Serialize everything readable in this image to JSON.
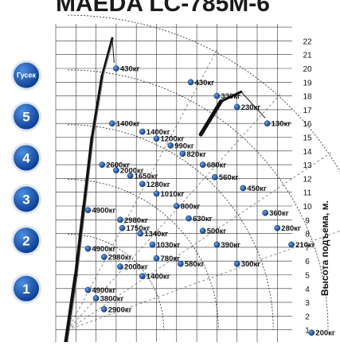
{
  "chart_data": {
    "type": "scatter",
    "title": "MAEDA LC-785M-6",
    "ylabel": "Высота подъема, м.",
    "y_ticks": [
      "1",
      "2",
      "3",
      "4",
      "5",
      "6",
      "7",
      "8",
      "9",
      "10",
      "11",
      "12",
      "13",
      "14",
      "15",
      "16",
      "17",
      "18",
      "19",
      "20",
      "21",
      "22"
    ],
    "ylim": [
      0,
      23
    ],
    "xlim": [
      0,
      14
    ],
    "grid": true,
    "sections": [
      {
        "label": "Гусек",
        "y": 19.5
      },
      {
        "label": "5",
        "y": 16.5
      },
      {
        "label": "4",
        "y": 13.5
      },
      {
        "label": "3",
        "y": 10.5
      },
      {
        "label": "2",
        "y": 7.5
      },
      {
        "label": "1",
        "y": 4.0
      }
    ],
    "points": [
      {
        "x": 3.0,
        "y": 20.0,
        "label": "430кг"
      },
      {
        "x": 6.7,
        "y": 19.0,
        "label": "430кг"
      },
      {
        "x": 8.0,
        "y": 18.0,
        "label": "330кг"
      },
      {
        "x": 9.0,
        "y": 17.2,
        "label": "230кг"
      },
      {
        "x": 10.5,
        "y": 16.0,
        "label": "130кг"
      },
      {
        "x": 2.8,
        "y": 16.0,
        "label": "1400кг"
      },
      {
        "x": 4.3,
        "y": 15.4,
        "label": "1400кг"
      },
      {
        "x": 5.0,
        "y": 14.9,
        "label": "1200кг"
      },
      {
        "x": 5.7,
        "y": 14.4,
        "label": "990кг"
      },
      {
        "x": 6.3,
        "y": 13.8,
        "label": "820кг"
      },
      {
        "x": 7.3,
        "y": 13.0,
        "label": "680кг"
      },
      {
        "x": 7.9,
        "y": 12.1,
        "label": "560кг"
      },
      {
        "x": 9.3,
        "y": 11.3,
        "label": "450кг"
      },
      {
        "x": 10.4,
        "y": 9.5,
        "label": "360кг"
      },
      {
        "x": 11.0,
        "y": 8.4,
        "label": "280кг"
      },
      {
        "x": 11.7,
        "y": 7.2,
        "label": "210кг"
      },
      {
        "x": 12.7,
        "y": 0.8,
        "label": "200кг"
      },
      {
        "x": 2.3,
        "y": 13.0,
        "label": "2600кг"
      },
      {
        "x": 3.0,
        "y": 12.6,
        "label": "2000кг"
      },
      {
        "x": 3.7,
        "y": 12.2,
        "label": "1650кг"
      },
      {
        "x": 4.3,
        "y": 11.6,
        "label": "1280кг"
      },
      {
        "x": 5.0,
        "y": 10.9,
        "label": "1010кг"
      },
      {
        "x": 6.0,
        "y": 10.0,
        "label": "800кг"
      },
      {
        "x": 6.6,
        "y": 9.1,
        "label": "630кг"
      },
      {
        "x": 7.3,
        "y": 8.2,
        "label": "500кг"
      },
      {
        "x": 8.0,
        "y": 7.2,
        "label": "390кг"
      },
      {
        "x": 9.0,
        "y": 5.8,
        "label": "300кг"
      },
      {
        "x": 1.6,
        "y": 9.7,
        "label": "4900кг"
      },
      {
        "x": 3.2,
        "y": 9.0,
        "label": "2980кг"
      },
      {
        "x": 3.3,
        "y": 8.4,
        "label": "1750кг"
      },
      {
        "x": 4.2,
        "y": 8.0,
        "label": "1340кг"
      },
      {
        "x": 4.8,
        "y": 7.2,
        "label": "1030кг"
      },
      {
        "x": 5.0,
        "y": 6.2,
        "label": "780кг"
      },
      {
        "x": 6.2,
        "y": 5.8,
        "label": "580кг"
      },
      {
        "x": 1.6,
        "y": 6.9,
        "label": "4900кг"
      },
      {
        "x": 2.4,
        "y": 6.3,
        "label": "2980кг"
      },
      {
        "x": 3.2,
        "y": 5.6,
        "label": "2000кг"
      },
      {
        "x": 4.3,
        "y": 4.9,
        "label": "1400кг"
      },
      {
        "x": 1.6,
        "y": 3.9,
        "label": "4900кг"
      },
      {
        "x": 2.0,
        "y": 3.3,
        "label": "3800кг"
      },
      {
        "x": 2.4,
        "y": 2.5,
        "label": "2900кг"
      }
    ]
  }
}
